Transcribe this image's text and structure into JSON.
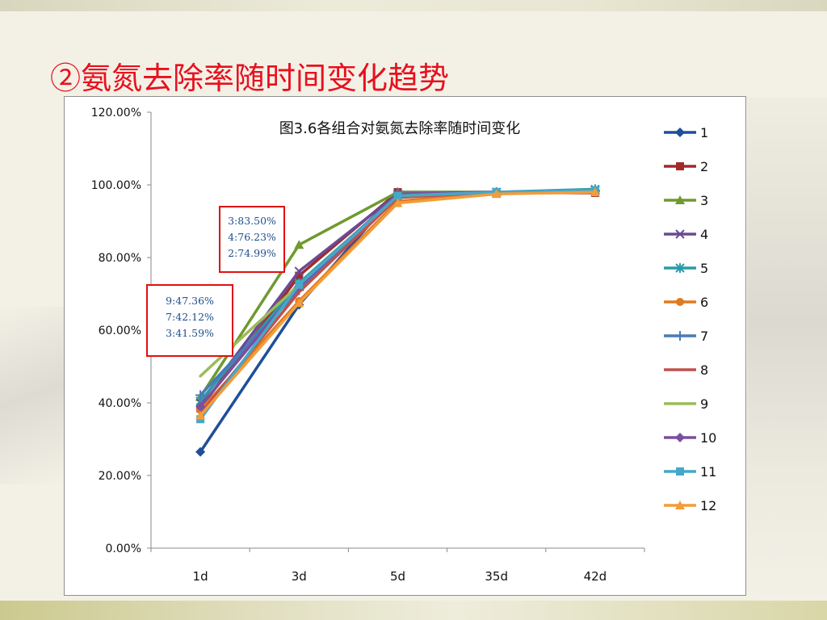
{
  "slide": {
    "title": "②氨氮去除率随时间变化趋势"
  },
  "chart_data": {
    "type": "line",
    "title": "图3.6各组合对氨氮去除率随时间变化",
    "xlabel": "",
    "ylabel": "",
    "categories": [
      "1d",
      "3d",
      "5d",
      "35d",
      "42d"
    ],
    "ylim": [
      0,
      120
    ],
    "yticks": [
      "0.00%",
      "20.00%",
      "40.00%",
      "60.00%",
      "80.00%",
      "100.00%",
      "120.00%"
    ],
    "legend_position": "right",
    "grid": false,
    "series": [
      {
        "name": "1",
        "color": "#1f4e9a",
        "marker": "diamond",
        "values": [
          26.5,
          67.0,
          98.0,
          98.0,
          98.5
        ]
      },
      {
        "name": "2",
        "color": "#a12a2a",
        "marker": "square",
        "values": [
          38.5,
          74.99,
          98.0,
          97.8,
          97.8
        ]
      },
      {
        "name": "3",
        "color": "#6f9a2e",
        "marker": "triangle",
        "values": [
          41.59,
          83.5,
          98.0,
          98.0,
          98.5
        ]
      },
      {
        "name": "4",
        "color": "#6a4a94",
        "marker": "x",
        "values": [
          40.0,
          76.23,
          97.5,
          98.0,
          98.5
        ]
      },
      {
        "name": "5",
        "color": "#2a9aaa",
        "marker": "star",
        "values": [
          40.5,
          73.0,
          97.0,
          98.0,
          98.8
        ]
      },
      {
        "name": "6",
        "color": "#e07a1e",
        "marker": "circle",
        "values": [
          38.0,
          68.0,
          95.5,
          97.8,
          98.0
        ]
      },
      {
        "name": "7",
        "color": "#4a7ab8",
        "marker": "plus",
        "values": [
          42.12,
          71.0,
          97.0,
          98.0,
          98.3
        ]
      },
      {
        "name": "8",
        "color": "#c0504d",
        "marker": "none",
        "values": [
          37.0,
          70.5,
          96.5,
          98.0,
          98.0
        ]
      },
      {
        "name": "9",
        "color": "#9bbb59",
        "marker": "none",
        "values": [
          47.36,
          72.5,
          97.0,
          98.0,
          98.2
        ]
      },
      {
        "name": "10",
        "color": "#7a4fa0",
        "marker": "diamond",
        "values": [
          39.0,
          72.0,
          97.5,
          98.0,
          98.3
        ]
      },
      {
        "name": "11",
        "color": "#45a8c8",
        "marker": "square",
        "values": [
          35.5,
          72.5,
          97.0,
          98.0,
          98.5
        ]
      },
      {
        "name": "12",
        "color": "#f39c3a",
        "marker": "triangle",
        "values": [
          36.5,
          67.5,
          95.0,
          97.5,
          98.0
        ]
      }
    ],
    "annotations": [
      {
        "lines": [
          "3:83.50%",
          "4:76.23%",
          "2:74.99%"
        ]
      },
      {
        "lines": [
          "9:47.36%",
          "7:42.12%",
          "3:41.59%"
        ]
      }
    ]
  }
}
